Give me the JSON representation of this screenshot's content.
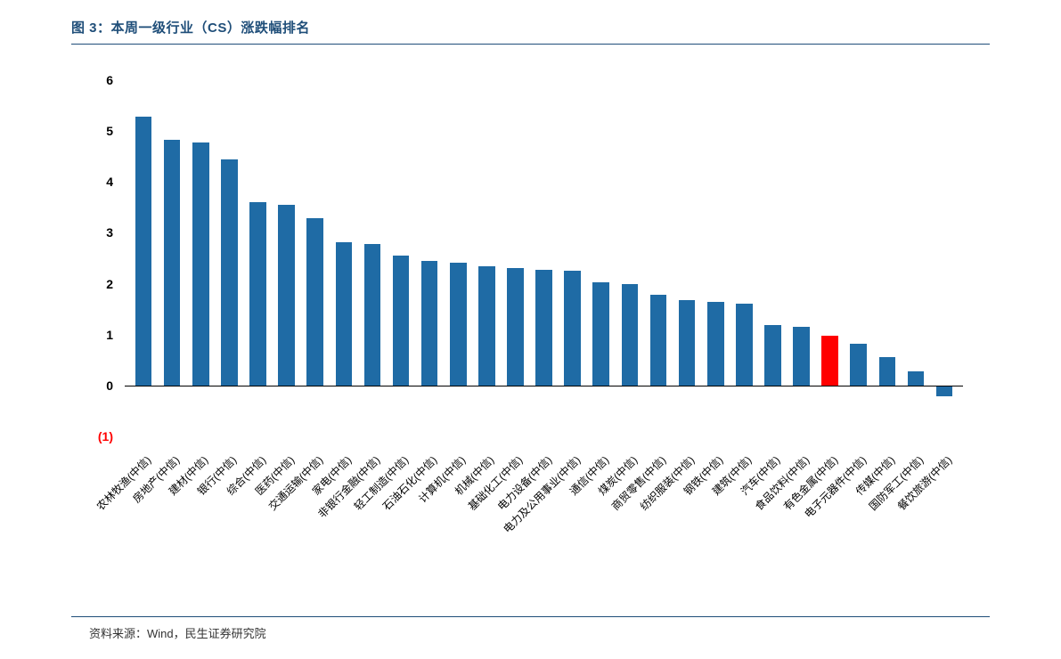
{
  "title": "图 3：本周一级行业（CS）涨跌幅排名",
  "source": "资料来源：Wind，民生证券研究院",
  "chart": {
    "type": "bar",
    "ylim": [
      -1,
      6
    ],
    "ytick_step": 1,
    "yticks": [
      {
        "value": 6,
        "label": "6",
        "negative": false
      },
      {
        "value": 5,
        "label": "5",
        "negative": false
      },
      {
        "value": 4,
        "label": "4",
        "negative": false
      },
      {
        "value": 3,
        "label": "3",
        "negative": false
      },
      {
        "value": 2,
        "label": "2",
        "negative": false
      },
      {
        "value": 1,
        "label": "1",
        "negative": false
      },
      {
        "value": 0,
        "label": "0",
        "negative": false
      },
      {
        "value": -1,
        "label": "(1)",
        "negative": true
      }
    ],
    "baseline": 0,
    "bar_width": 0.58,
    "background_color": "#ffffff",
    "default_bar_color": "#1f6ba5",
    "highlight_bar_color": "#ff0000",
    "title_color": "#1f4e79",
    "border_color": "#1f4e79",
    "axis_color": "#000000",
    "label_fontsize": 12,
    "ytick_fontsize": 14,
    "title_fontsize": 15,
    "categories": [
      "农林牧渔(中信)",
      "房地产(中信)",
      "建材(中信)",
      "银行(中信)",
      "综合(中信)",
      "医药(中信)",
      "交通运输(中信)",
      "家电(中信)",
      "非银行金融(中信)",
      "轻工制造(中信)",
      "石油石化(中信)",
      "计算机(中信)",
      "机械(中信)",
      "基础化工(中信)",
      "电力设备(中信)",
      "电力及公用事业(中信)",
      "通信(中信)",
      "煤炭(中信)",
      "商贸零售(中信)",
      "纺织服装(中信)",
      "钢铁(中信)",
      "建筑(中信)",
      "汽车(中信)",
      "食品饮料(中信)",
      "有色金属(中信)",
      "电子元器件(中信)",
      "传媒(中信)",
      "国防军工(中信)",
      "餐饮旅游(中信)"
    ],
    "values": [
      5.28,
      4.82,
      4.78,
      4.45,
      3.6,
      3.55,
      3.28,
      2.82,
      2.78,
      2.55,
      2.45,
      2.42,
      2.35,
      2.3,
      2.28,
      2.25,
      2.02,
      2.0,
      1.78,
      1.68,
      1.65,
      1.6,
      1.18,
      1.15,
      0.98,
      0.82,
      0.55,
      0.28,
      -0.22
    ],
    "highlight_index": 24
  }
}
